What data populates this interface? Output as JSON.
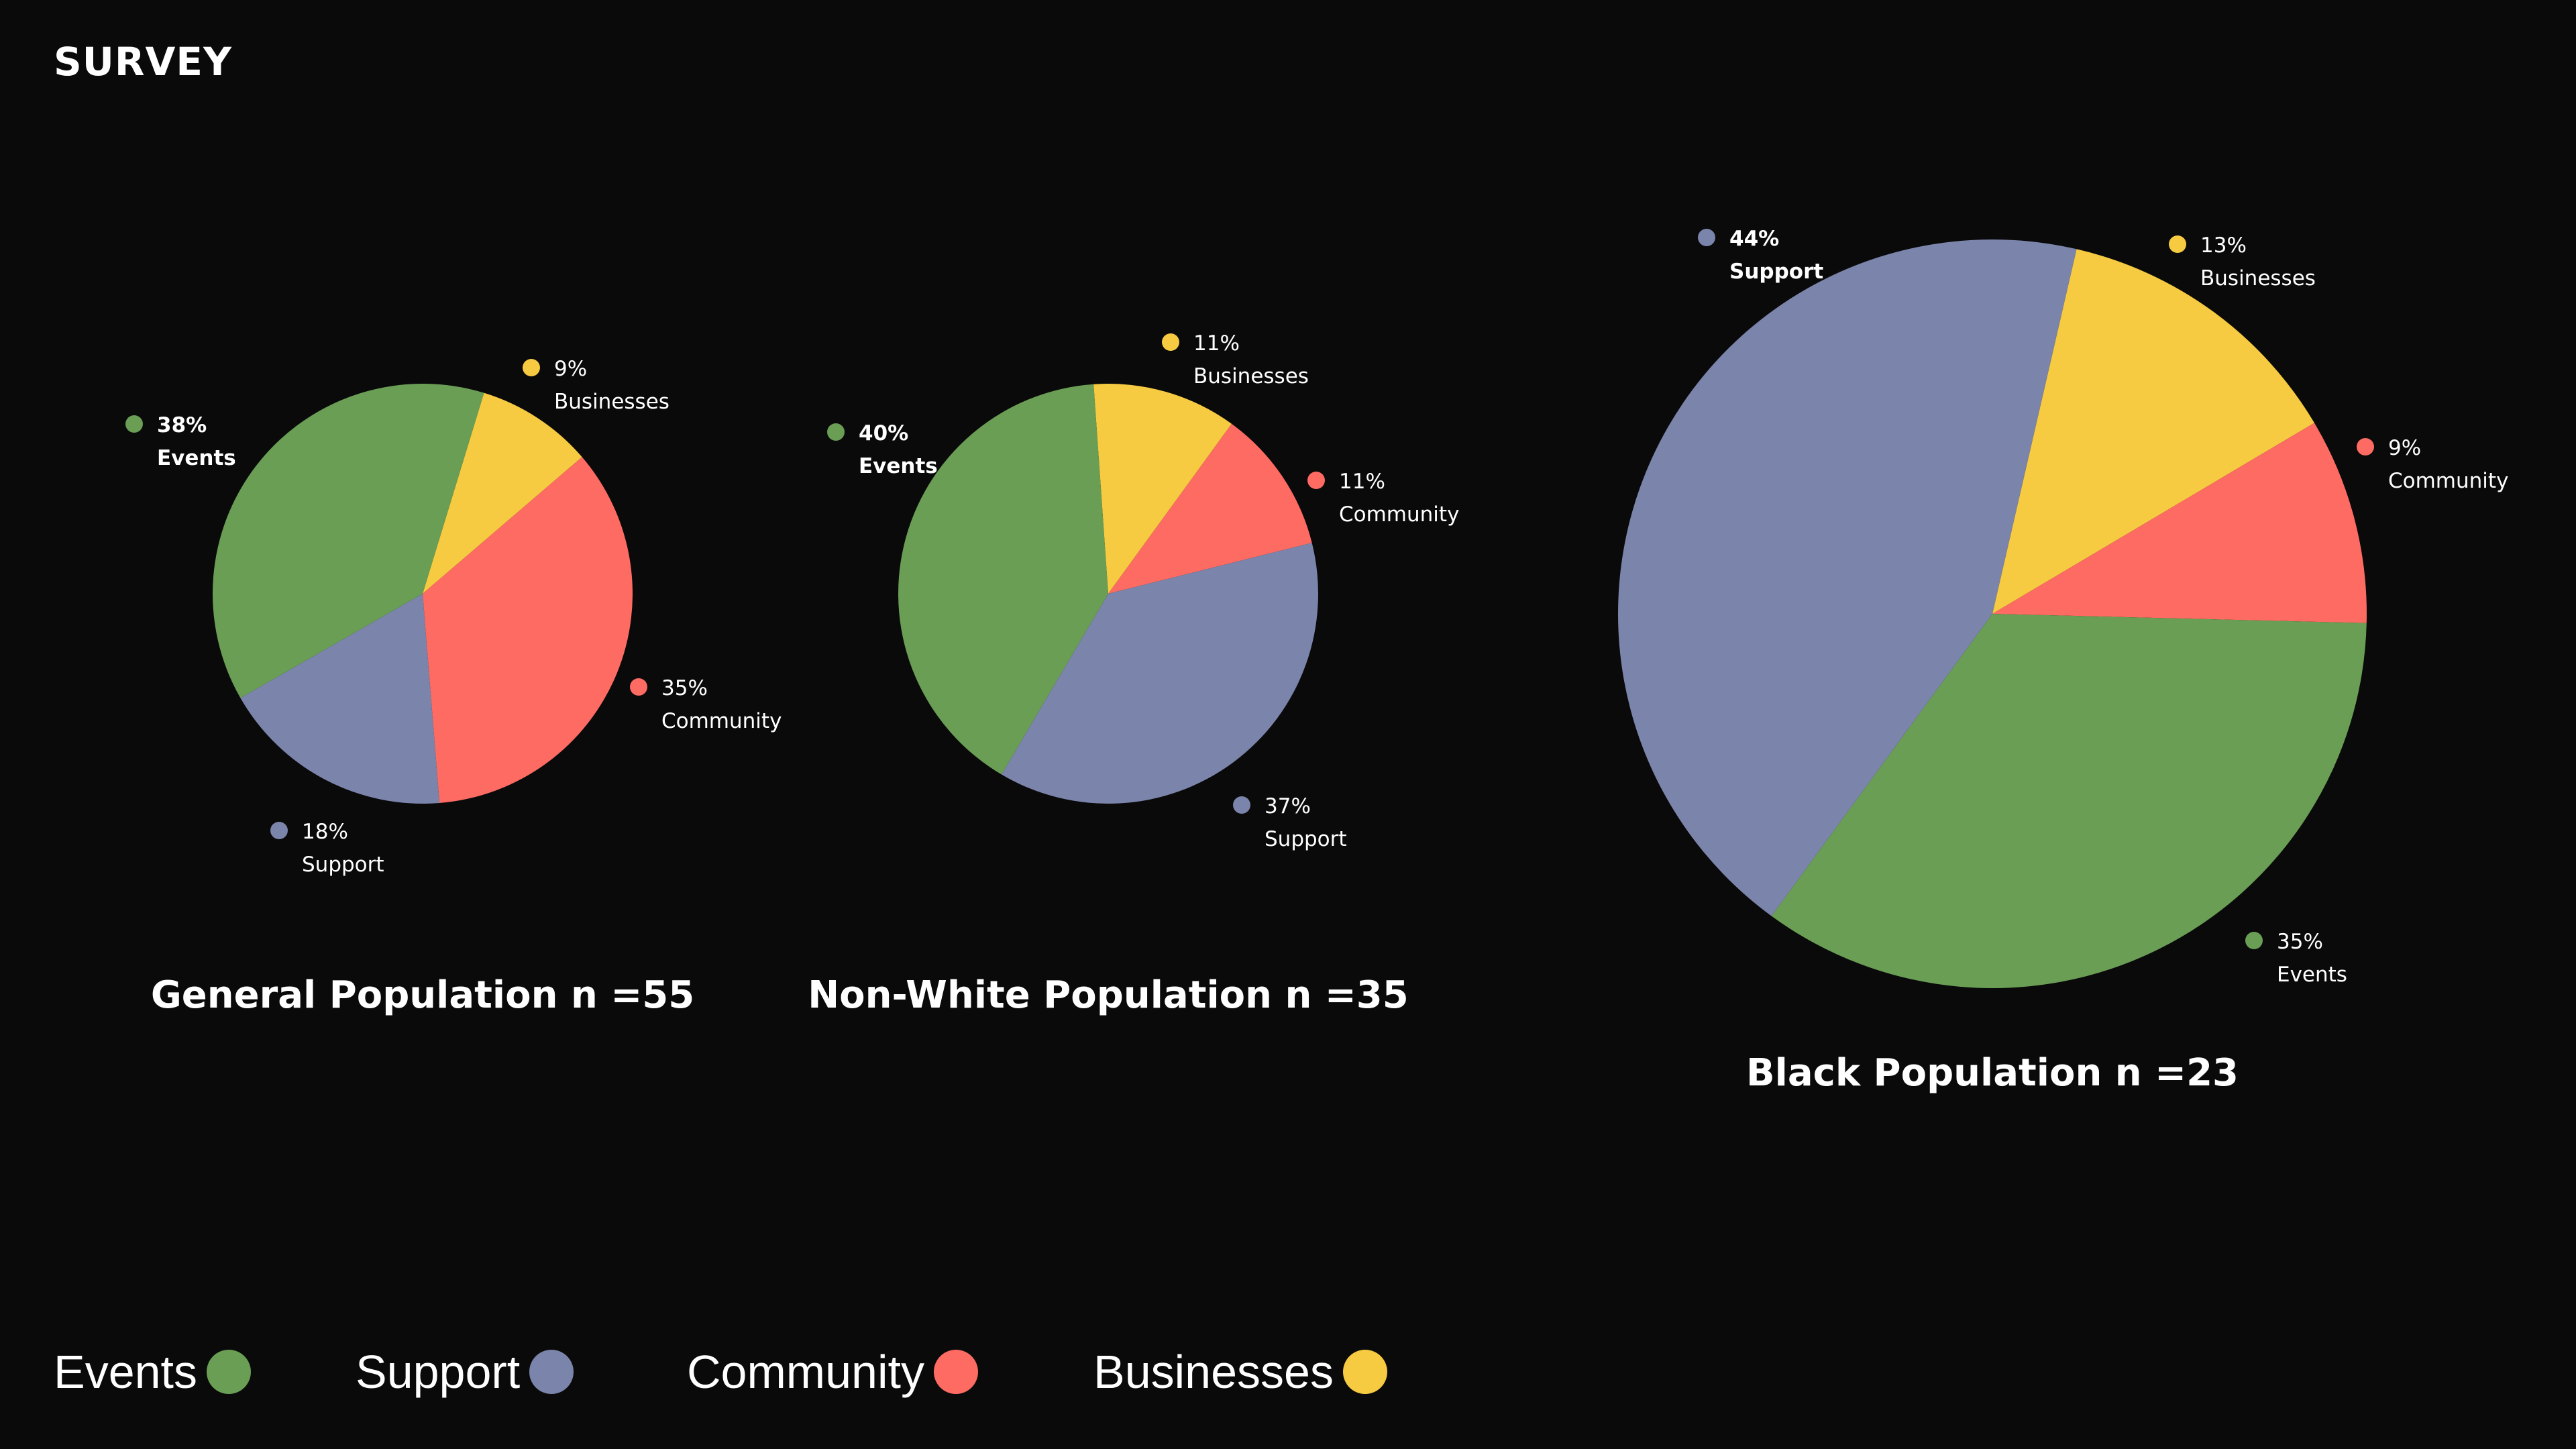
{
  "page_title": "SURVEY",
  "colors": {
    "Events": "#6a9e55",
    "Support": "#7b84aa",
    "Community": "#fd6b63",
    "Businesses": "#f6cb41",
    "background": "#0a0a0a"
  },
  "legend": [
    {
      "label": "Events",
      "color": "#6a9e55"
    },
    {
      "label": "Support",
      "color": "#7b84aa"
    },
    {
      "label": "Community",
      "color": "#fd6b63"
    },
    {
      "label": "Businesses",
      "color": "#f6cb41"
    }
  ],
  "chart_data": [
    {
      "type": "pie",
      "title": "General Population n =55",
      "slices": [
        {
          "label": "Businesses",
          "value": 9,
          "value_label": "9%",
          "highlight": false
        },
        {
          "label": "Community",
          "value": 35,
          "value_label": "35%",
          "highlight": false
        },
        {
          "label": "Support",
          "value": 18,
          "value_label": "18%",
          "highlight": false
        },
        {
          "label": "Events",
          "value": 38,
          "value_label": "38%",
          "highlight": true
        }
      ]
    },
    {
      "type": "pie",
      "title": "Non-White Population n =35",
      "slices": [
        {
          "label": "Businesses",
          "value": 11,
          "value_label": "11%",
          "highlight": false
        },
        {
          "label": "Community",
          "value": 11,
          "value_label": "11%",
          "highlight": false
        },
        {
          "label": "Support",
          "value": 37,
          "value_label": "37%",
          "highlight": false
        },
        {
          "label": "Events",
          "value": 40,
          "value_label": "40%",
          "highlight": true
        }
      ]
    },
    {
      "type": "pie",
      "title": "Black Population n =23",
      "slices": [
        {
          "label": "Businesses",
          "value": 13,
          "value_label": "13%",
          "highlight": false
        },
        {
          "label": "Community",
          "value": 9,
          "value_label": "9%",
          "highlight": false
        },
        {
          "label": "Events",
          "value": 35,
          "value_label": "35%",
          "highlight": false
        },
        {
          "label": "Support",
          "value": 44,
          "value_label": "44%",
          "highlight": true
        }
      ]
    }
  ]
}
